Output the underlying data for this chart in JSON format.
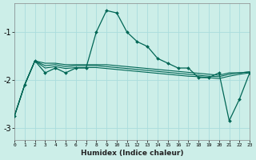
{
  "xlabel": "Humidex (Indice chaleur)",
  "background_color": "#cceee8",
  "grid_color_major": "#aadddd",
  "grid_color_minor": "#bbdddd",
  "line_color": "#006655",
  "x_values": [
    0,
    1,
    2,
    3,
    4,
    5,
    6,
    7,
    8,
    9,
    10,
    11,
    12,
    13,
    14,
    15,
    16,
    17,
    18,
    19,
    20,
    21,
    22,
    23
  ],
  "zigzag": [
    -2.75,
    -2.1,
    -1.6,
    -1.85,
    -1.75,
    -1.85,
    -1.75,
    -1.75,
    -1.0,
    -0.55,
    -0.6,
    -1.0,
    -1.2,
    -1.3,
    -1.55,
    -1.65,
    -1.75,
    -1.75,
    -1.95,
    -1.95,
    -1.85,
    -2.85,
    -2.4,
    -1.85
  ],
  "line1": [
    -2.75,
    -2.1,
    -1.6,
    -1.65,
    -1.65,
    -1.68,
    -1.68,
    -1.68,
    -1.68,
    -1.68,
    -1.7,
    -1.72,
    -1.74,
    -1.76,
    -1.78,
    -1.8,
    -1.82,
    -1.84,
    -1.86,
    -1.88,
    -1.9,
    -1.85,
    -1.85,
    -1.83
  ],
  "line2": [
    -2.75,
    -2.1,
    -1.6,
    -1.7,
    -1.68,
    -1.72,
    -1.7,
    -1.7,
    -1.7,
    -1.72,
    -1.74,
    -1.76,
    -1.78,
    -1.8,
    -1.82,
    -1.84,
    -1.86,
    -1.88,
    -1.9,
    -1.92,
    -1.93,
    -1.88,
    -1.85,
    -1.83
  ],
  "line3": [
    -2.75,
    -2.1,
    -1.6,
    -1.75,
    -1.72,
    -1.76,
    -1.74,
    -1.74,
    -1.74,
    -1.76,
    -1.78,
    -1.8,
    -1.82,
    -1.84,
    -1.86,
    -1.88,
    -1.9,
    -1.92,
    -1.93,
    -1.95,
    -1.97,
    -1.92,
    -1.88,
    -1.85
  ],
  "ylim": [
    -3.25,
    -0.4
  ],
  "yticks": [
    -3,
    -2,
    -1
  ],
  "ytick_labels": [
    "-3",
    "-2",
    "-1"
  ],
  "xlim": [
    0,
    23
  ],
  "xtick_labels": [
    "0",
    "1",
    "2",
    "3",
    "4",
    "5",
    "6",
    "7",
    "8",
    "9",
    "10",
    "11",
    "12",
    "13",
    "14",
    "15",
    "16",
    "17",
    "18",
    "19",
    "20",
    "21",
    "22",
    "23"
  ]
}
